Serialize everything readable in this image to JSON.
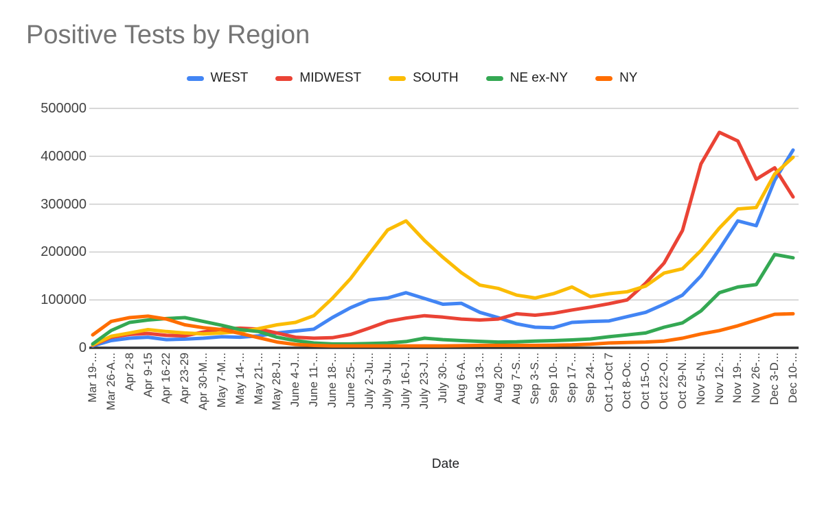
{
  "chart_data": {
    "type": "line",
    "title": "Positive Tests by Region",
    "xlabel": "Date",
    "ylabel": "",
    "ylim": [
      0,
      500000
    ],
    "y_ticks": [
      0,
      100000,
      200000,
      300000,
      400000,
      500000
    ],
    "grid": true,
    "legend_position": "top",
    "categories": [
      "Mar 19-...",
      "Mar 26-A...",
      "Apr 2-8",
      "Apr 9-15",
      "Apr 16-22",
      "Apr 23-29",
      "Apr 30-M...",
      "May 7-M...",
      "May 14-...",
      "May 21-...",
      "May 28-J...",
      "June 4-J...",
      "June 11-...",
      "June 18-...",
      "June 25-...",
      "July 2-Ju...",
      "July 9-Ju...",
      "July 16-J...",
      "July 23-J...",
      "July 30-...",
      "Aug 6-A...",
      "Aug 13-...",
      "Aug 20-...",
      "Aug 7-S...",
      "Sep 3-S...",
      "Sep 10-...",
      "Sep 17-...",
      "Sep 24-...",
      "Oct 1-Oct 7",
      "Oct 8-Oc...",
      "Oct 15-O...",
      "Oct 22-O...",
      "Oct 29-N...",
      "Nov 5-N...",
      "Nov 12-...",
      "Nov 19-...",
      "Nov 26-...",
      "Dec 3-D...",
      "Dec 10-..."
    ],
    "series": [
      {
        "name": "WEST",
        "color": "#4285F4",
        "values": [
          4000,
          15000,
          20000,
          22000,
          17000,
          18000,
          20000,
          23000,
          22000,
          25000,
          31000,
          35000,
          39000,
          63000,
          84000,
          100000,
          104000,
          115000,
          103000,
          91000,
          93000,
          74000,
          63000,
          50000,
          43000,
          42000,
          53000,
          55000,
          56000,
          65000,
          74000,
          91000,
          110000,
          150000,
          206000,
          265000,
          255000,
          350000,
          413000
        ]
      },
      {
        "name": "MIDWEST",
        "color": "#EA4335",
        "values": [
          5000,
          22000,
          28000,
          30000,
          26000,
          25000,
          33000,
          39000,
          41000,
          39000,
          31000,
          22000,
          20000,
          21000,
          28000,
          41000,
          55000,
          62000,
          67000,
          64000,
          60000,
          58000,
          60000,
          71000,
          68000,
          72000,
          79000,
          85000,
          92000,
          100000,
          135000,
          177000,
          245000,
          384000,
          450000,
          432000,
          352000,
          376000,
          315000
        ]
      },
      {
        "name": "SOUTH",
        "color": "#FBBC04",
        "values": [
          6000,
          24000,
          31000,
          38000,
          34000,
          31000,
          29000,
          31000,
          34000,
          40000,
          48000,
          53000,
          67000,
          103000,
          145000,
          196000,
          246000,
          265000,
          224000,
          189000,
          157000,
          131000,
          124000,
          110000,
          104000,
          113000,
          127000,
          107000,
          113000,
          117000,
          129000,
          156000,
          165000,
          203000,
          250000,
          290000,
          293000,
          363000,
          398000
        ]
      },
      {
        "name": "NE ex-NY",
        "color": "#34A853",
        "values": [
          8000,
          36000,
          53000,
          58000,
          61000,
          63000,
          55000,
          47000,
          38000,
          34000,
          22000,
          15000,
          10000,
          8000,
          8000,
          9000,
          10000,
          13000,
          20000,
          17000,
          15000,
          13500,
          12000,
          12500,
          14000,
          15000,
          16500,
          18500,
          23000,
          27000,
          31000,
          43000,
          52000,
          77000,
          115000,
          127000,
          132000,
          195000,
          188000
        ]
      },
      {
        "name": "NY",
        "color": "#FF6D00",
        "values": [
          27000,
          55000,
          63000,
          66000,
          60000,
          48000,
          42000,
          38000,
          30000,
          21000,
          12000,
          7000,
          5000,
          4000,
          4000,
          4000,
          4000,
          4000,
          4000,
          4000,
          4500,
          5000,
          5000,
          5000,
          5000,
          5500,
          6000,
          7500,
          10000,
          11000,
          12000,
          14000,
          20000,
          29000,
          36000,
          46000,
          58000,
          70000,
          71000
        ]
      }
    ]
  },
  "colors": {
    "background": "#ffffff",
    "title_text": "#757575",
    "axis_text": "#424242",
    "gridline": "#cccccc",
    "axis_line": "#333333"
  }
}
